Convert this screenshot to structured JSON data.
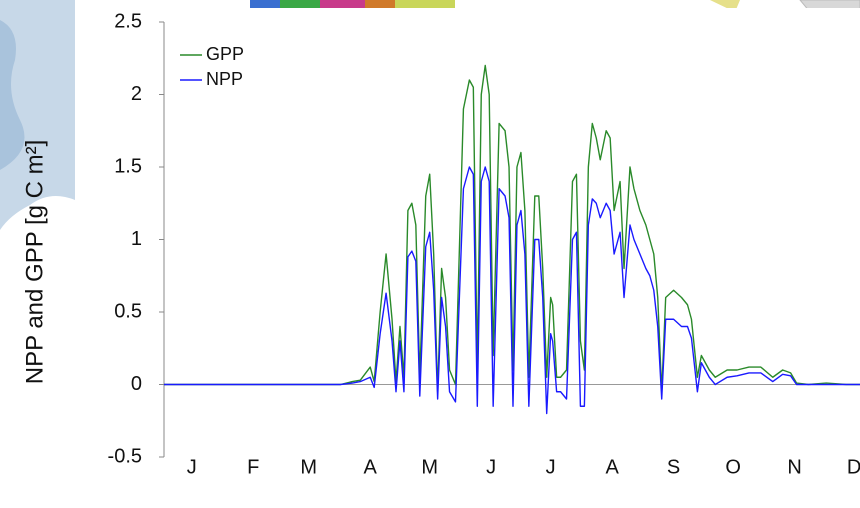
{
  "chart_data": {
    "type": "line",
    "y_label": "NPP and GPP [g C m²]",
    "xlim": [
      1,
      352
    ],
    "xticks": [
      {
        "value": 15,
        "label": "J"
      },
      {
        "value": 46,
        "label": "F"
      },
      {
        "value": 74,
        "label": "M"
      },
      {
        "value": 105,
        "label": "A"
      },
      {
        "value": 135,
        "label": "M"
      },
      {
        "value": 166,
        "label": "J"
      },
      {
        "value": 196,
        "label": "J"
      },
      {
        "value": 227,
        "label": "A"
      },
      {
        "value": 258,
        "label": "S"
      },
      {
        "value": 288,
        "label": "O"
      },
      {
        "value": 319,
        "label": "N"
      },
      {
        "value": 349,
        "label": "D"
      }
    ],
    "ylim": [
      -0.5,
      2.5
    ],
    "yticks": [
      -0.5,
      0,
      0.5,
      1,
      1.5,
      2,
      2.5
    ],
    "legend": "upper left",
    "x": [
      1,
      60,
      90,
      96,
      100,
      105,
      107,
      110,
      113,
      116,
      118,
      120,
      122,
      124,
      126,
      128,
      130,
      133,
      135,
      137,
      139,
      141,
      143,
      145,
      148,
      152,
      155,
      157,
      159,
      161,
      163,
      165,
      167,
      170,
      173,
      175,
      177,
      179,
      181,
      183,
      185,
      188,
      190,
      192,
      194,
      196,
      197,
      199,
      201,
      204,
      207,
      209,
      211,
      213,
      215,
      217,
      219,
      221,
      224,
      226,
      228,
      231,
      233,
      236,
      238,
      241,
      244,
      246,
      248,
      250,
      252,
      254,
      258,
      262,
      265,
      267,
      270,
      272,
      276,
      279,
      285,
      290,
      296,
      302,
      308,
      313,
      317,
      320,
      326,
      335,
      345,
      352
    ],
    "series": [
      {
        "name": "GPP",
        "color": "#2a8a2a",
        "values": [
          0,
          0,
          0,
          0.02,
          0.03,
          0.12,
          0.02,
          0.5,
          0.9,
          0.45,
          0.02,
          0.4,
          0.05,
          1.2,
          1.25,
          1.1,
          0.05,
          1.3,
          1.45,
          0.9,
          -0.05,
          0.8,
          0.6,
          0.1,
          0,
          1.9,
          2.1,
          2.05,
          0.1,
          2.0,
          2.2,
          2.0,
          0.2,
          1.8,
          1.75,
          1.5,
          0.1,
          1.5,
          1.6,
          1.2,
          0.05,
          1.3,
          1.3,
          0.8,
          0.05,
          0.6,
          0.55,
          0.05,
          0.05,
          0.1,
          1.4,
          1.45,
          0.3,
          0.1,
          1.5,
          1.8,
          1.7,
          1.55,
          1.75,
          1.7,
          1.2,
          1.4,
          0.8,
          1.5,
          1.35,
          1.2,
          1.1,
          1.0,
          0.9,
          0.6,
          -0.05,
          0.6,
          0.65,
          0.6,
          0.55,
          0.45,
          0.05,
          0.2,
          0.1,
          0.05,
          0.1,
          0.1,
          0.12,
          0.12,
          0.05,
          0.1,
          0.08,
          0.01,
          0,
          0.01,
          0,
          0
        ]
      },
      {
        "name": "NPP",
        "color": "#1a1aff",
        "values": [
          0,
          0,
          0,
          0.01,
          0.02,
          0.05,
          -0.02,
          0.35,
          0.63,
          0.3,
          -0.05,
          0.3,
          -0.05,
          0.88,
          0.92,
          0.85,
          -0.08,
          0.95,
          1.05,
          0.65,
          -0.1,
          0.6,
          0.4,
          -0.05,
          -0.12,
          1.35,
          1.5,
          1.45,
          -0.15,
          1.4,
          1.5,
          1.4,
          -0.15,
          1.35,
          1.3,
          1.15,
          -0.15,
          1.1,
          1.2,
          0.9,
          -0.15,
          1.0,
          1.0,
          0.6,
          -0.2,
          0.35,
          0.3,
          -0.05,
          -0.05,
          -0.1,
          1.0,
          1.05,
          -0.15,
          -0.15,
          1.1,
          1.28,
          1.25,
          1.15,
          1.25,
          1.2,
          0.9,
          1.05,
          0.6,
          1.1,
          1.0,
          0.9,
          0.8,
          0.75,
          0.65,
          0.4,
          -0.1,
          0.45,
          0.45,
          0.4,
          0.4,
          0.32,
          -0.05,
          0.15,
          0.05,
          0,
          0.05,
          0.06,
          0.08,
          0.08,
          0.02,
          0.07,
          0.06,
          0,
          0,
          0,
          0,
          0
        ]
      }
    ]
  }
}
